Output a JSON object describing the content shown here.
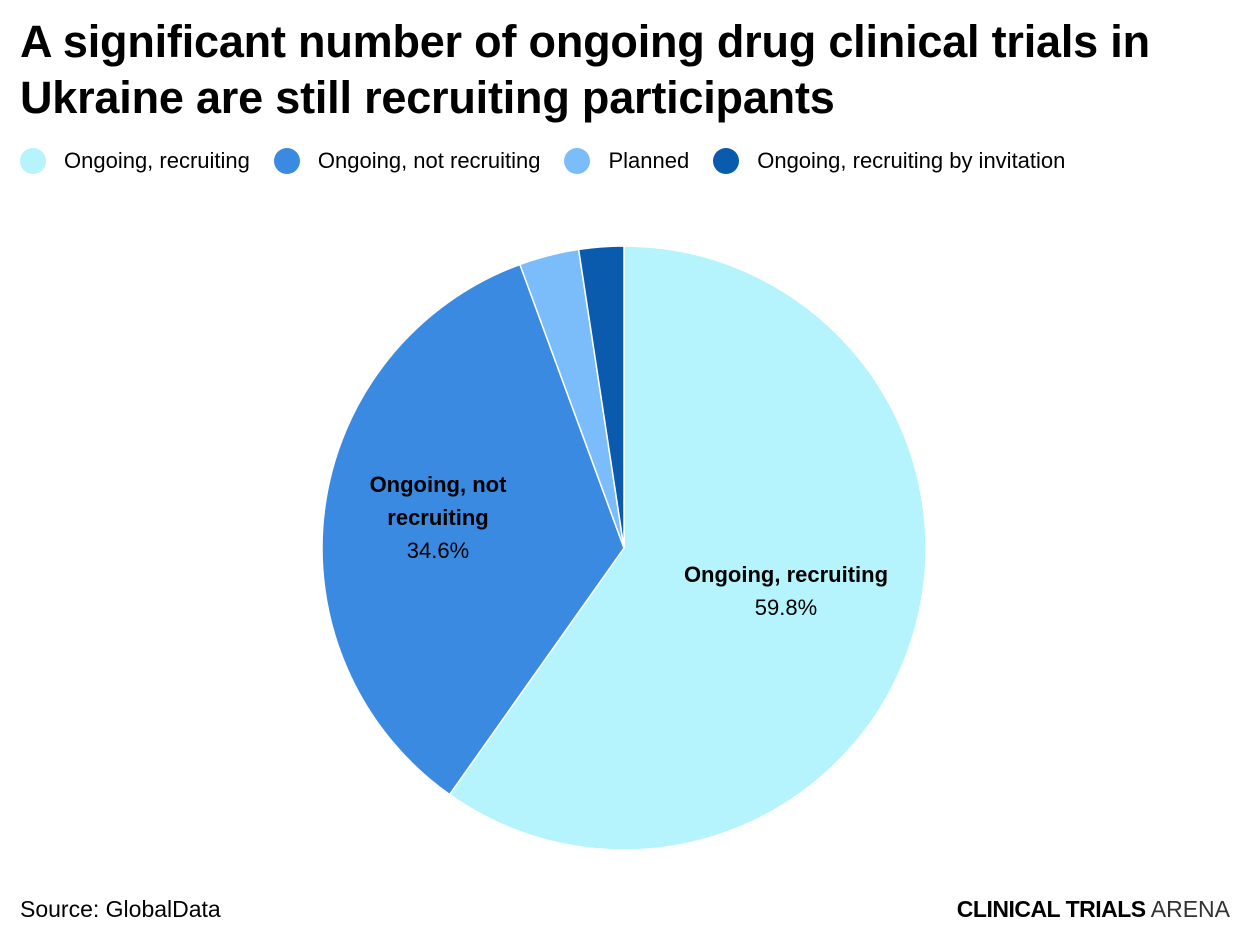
{
  "title": "A significant number of ongoing drug clinical trials in Ukraine are still recruiting participants",
  "source": "Source: GlobalData",
  "brand": {
    "bold": "CLINICAL TRIALS",
    "light": "ARENA"
  },
  "chart_data": {
    "type": "pie",
    "title": "A significant number of ongoing drug clinical trials in Ukraine are still recruiting participants",
    "legend_position": "top-left",
    "start_angle": "12 o'clock",
    "direction": "clockwise",
    "slices": [
      {
        "label": "Ongoing, recruiting",
        "value": 59.8,
        "display": "59.8%",
        "color": "#b5f4fd",
        "show_label": true,
        "label_lines": [
          "Ongoing, recruiting"
        ]
      },
      {
        "label": "Ongoing, not recruiting",
        "value": 34.6,
        "display": "34.6%",
        "color": "#3a8ae1",
        "show_label": true,
        "label_lines": [
          "Ongoing, not",
          "recruiting"
        ]
      },
      {
        "label": "Planned",
        "value": 3.2,
        "display": "3.2%",
        "color": "#7abdfa",
        "show_label": false,
        "label_lines": []
      },
      {
        "label": "Ongoing, recruiting by invitation",
        "value": 2.4,
        "display": "2.4%",
        "color": "#0a5aad",
        "show_label": false,
        "label_lines": []
      }
    ]
  }
}
